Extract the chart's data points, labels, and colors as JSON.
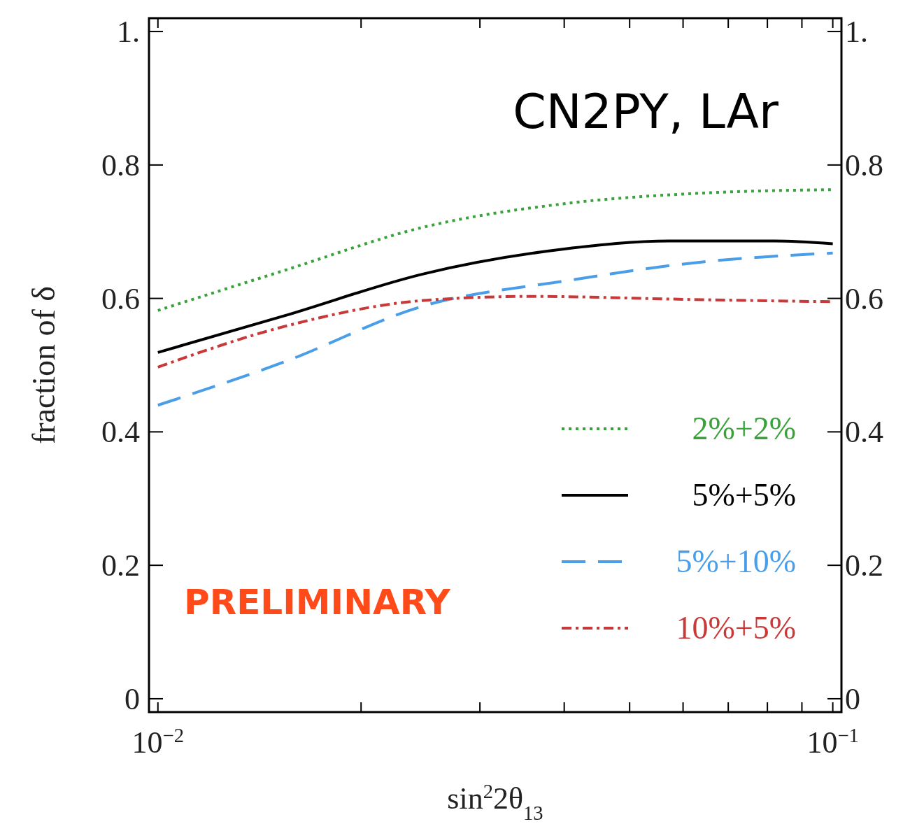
{
  "chart_data": {
    "type": "line",
    "xlabel": "sin$^{2}$2θ$_{13}$",
    "ylabel": "fraction of δ",
    "log": "x",
    "xlim": [
      0.0097,
      0.103
    ],
    "ylim": [
      -0.02,
      1.02
    ],
    "y2lim": [
      -0.02,
      1.02
    ],
    "xticks": [
      {
        "value": 0.01,
        "label": "10$^{−2}$"
      },
      {
        "value": 0.02,
        "label": null
      },
      {
        "value": 0.03,
        "label": null
      },
      {
        "value": 0.04,
        "label": null
      },
      {
        "value": 0.05,
        "label": null
      },
      {
        "value": 0.06,
        "label": null
      },
      {
        "value": 0.07,
        "label": null
      },
      {
        "value": 0.08,
        "label": null
      },
      {
        "value": 0.09,
        "label": null
      },
      {
        "value": 0.1,
        "label": "10$^{−1}$"
      }
    ],
    "yticks": [
      0,
      0.2,
      0.4,
      0.6,
      0.8,
      {
        "value": 1,
        "label": "1."
      }
    ],
    "y2ticks": [
      0,
      0.2,
      0.4,
      0.6,
      0.8,
      {
        "value": 1,
        "label": "1."
      }
    ],
    "legend": "bottom right",
    "annotations": [
      "CN2PY, LAr",
      "PRELIMINARY"
    ],
    "series": [
      {
        "name": "2%+2%",
        "color": "#3aa23a",
        "line_style": "dotted",
        "x": [
          0.01,
          0.0154,
          0.0248,
          0.04,
          0.0645,
          0.1
        ],
        "values": [
          0.582,
          0.642,
          0.707,
          0.742,
          0.758,
          0.763
        ]
      },
      {
        "name": "5%+5%",
        "color": "#000000",
        "line_style": "solid",
        "x": [
          0.01,
          0.0154,
          0.0248,
          0.04,
          0.0572,
          0.082,
          0.1
        ],
        "values": [
          0.519,
          0.574,
          0.637,
          0.674,
          0.686,
          0.686,
          0.682
        ]
      },
      {
        "name": "5%+10%",
        "color": "#4a9ee8",
        "line_style": "dashed",
        "x": [
          0.01,
          0.0154,
          0.0248,
          0.04,
          0.0645,
          0.1
        ],
        "values": [
          0.44,
          0.505,
          0.589,
          0.626,
          0.655,
          0.668
        ]
      },
      {
        "name": "10%+5%",
        "color": "#c83a3a",
        "line_style": "dashdot",
        "x": [
          0.01,
          0.0154,
          0.0248,
          0.0355,
          0.0645,
          0.1
        ],
        "values": [
          0.497,
          0.558,
          0.597,
          0.603,
          0.598,
          0.595
        ]
      }
    ]
  }
}
